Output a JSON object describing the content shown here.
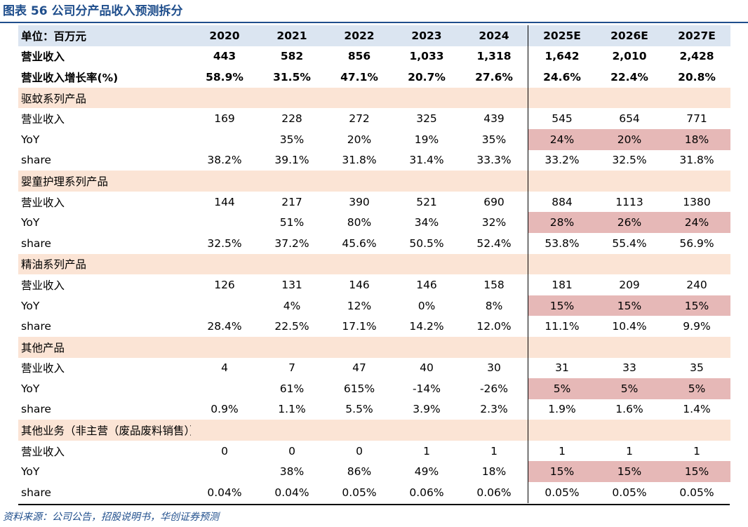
{
  "title": "图表 56   公司分产品收入预测拆分",
  "header": {
    "unit": "单位：百万元",
    "years": [
      "2020",
      "2021",
      "2022",
      "2023",
      "2024",
      "2025E",
      "2026E",
      "2027E"
    ]
  },
  "rows": [
    {
      "type": "bold",
      "label": "营业收入",
      "values": [
        "443",
        "582",
        "856",
        "1,033",
        "1,318",
        "1,642",
        "2,010",
        "2,428"
      ]
    },
    {
      "type": "bold",
      "label": "营业收入增长率(%)",
      "values": [
        "58.9%",
        "31.5%",
        "47.1%",
        "20.7%",
        "27.6%",
        "24.6%",
        "22.4%",
        "20.8%"
      ]
    },
    {
      "type": "section",
      "label": "驱蚊系列产品"
    },
    {
      "type": "data",
      "label": "营业收入",
      "values": [
        "169",
        "228",
        "272",
        "325",
        "439",
        "545",
        "654",
        "771"
      ]
    },
    {
      "type": "yoy",
      "label": "YoY",
      "values": [
        "",
        "35%",
        "20%",
        "19%",
        "35%",
        "24%",
        "20%",
        "18%"
      ]
    },
    {
      "type": "data",
      "label": "share",
      "values": [
        "38.2%",
        "39.1%",
        "31.8%",
        "31.4%",
        "33.3%",
        "33.2%",
        "32.5%",
        "31.8%"
      ]
    },
    {
      "type": "section",
      "label": "婴童护理系列产品"
    },
    {
      "type": "data",
      "label": "营业收入",
      "values": [
        "144",
        "217",
        "390",
        "521",
        "690",
        "884",
        "1113",
        "1380"
      ]
    },
    {
      "type": "yoy",
      "label": "YoY",
      "values": [
        "",
        "51%",
        "80%",
        "34%",
        "32%",
        "28%",
        "26%",
        "24%"
      ]
    },
    {
      "type": "data",
      "label": "share",
      "values": [
        "32.5%",
        "37.2%",
        "45.6%",
        "50.5%",
        "52.4%",
        "53.8%",
        "55.4%",
        "56.9%"
      ]
    },
    {
      "type": "section",
      "label": "精油系列产品"
    },
    {
      "type": "data",
      "label": "营业收入",
      "values": [
        "126",
        "131",
        "146",
        "146",
        "158",
        "181",
        "209",
        "240"
      ]
    },
    {
      "type": "yoy",
      "label": "YoY",
      "values": [
        "",
        "4%",
        "12%",
        "0%",
        "8%",
        "15%",
        "15%",
        "15%"
      ]
    },
    {
      "type": "data",
      "label": "share",
      "values": [
        "28.4%",
        "22.5%",
        "17.1%",
        "14.2%",
        "12.0%",
        "11.1%",
        "10.4%",
        "9.9%"
      ]
    },
    {
      "type": "section",
      "label": "其他产品"
    },
    {
      "type": "data",
      "label": "营业收入",
      "values": [
        "4",
        "7",
        "47",
        "40",
        "30",
        "31",
        "33",
        "35"
      ]
    },
    {
      "type": "yoy",
      "label": "YoY",
      "values": [
        "",
        "61%",
        "615%",
        "-14%",
        "-26%",
        "5%",
        "5%",
        "5%"
      ]
    },
    {
      "type": "data",
      "label": "share",
      "values": [
        "0.9%",
        "1.1%",
        "5.5%",
        "3.9%",
        "2.3%",
        "1.9%",
        "1.6%",
        "1.4%"
      ]
    },
    {
      "type": "section",
      "label": "其他业务（非主营（废品废料销售））"
    },
    {
      "type": "data",
      "label": "营业收入",
      "values": [
        "0",
        "0",
        "0",
        "1",
        "1",
        "1",
        "1",
        "1"
      ]
    },
    {
      "type": "yoy",
      "label": "YoY",
      "values": [
        "",
        "38%",
        "86%",
        "49%",
        "18%",
        "15%",
        "15%",
        "15%"
      ]
    },
    {
      "type": "data",
      "label": "share",
      "values": [
        "0.04%",
        "0.04%",
        "0.05%",
        "0.06%",
        "0.06%",
        "0.05%",
        "0.05%",
        "0.05%"
      ]
    }
  ],
  "source": "资料来源：公司公告，招股说明书，华创证券预测",
  "colors": {
    "title": "#1f4e8c",
    "header_bg": "#dbe5f1",
    "section_bg": "#fbe4d5",
    "forecast_highlight": "#e6b8b7"
  }
}
